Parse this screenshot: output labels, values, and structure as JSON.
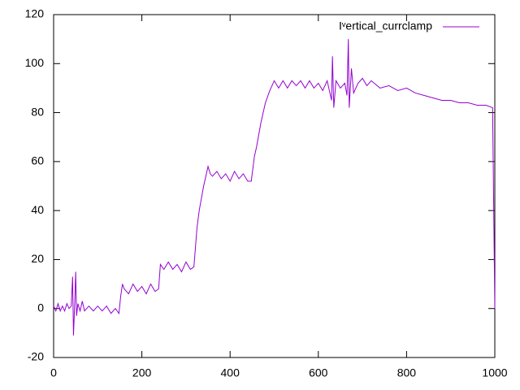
{
  "chart_data": {
    "type": "line",
    "x": [
      0,
      5,
      10,
      15,
      20,
      25,
      30,
      35,
      40,
      43,
      45,
      48,
      50,
      52,
      55,
      60,
      65,
      70,
      80,
      90,
      100,
      110,
      120,
      130,
      140,
      148,
      152,
      156,
      160,
      170,
      180,
      190,
      200,
      210,
      220,
      230,
      238,
      242,
      250,
      260,
      270,
      280,
      290,
      300,
      310,
      318,
      325,
      330,
      340,
      350,
      355,
      360,
      370,
      380,
      390,
      400,
      410,
      420,
      430,
      440,
      448,
      455,
      460,
      470,
      480,
      490,
      500,
      510,
      520,
      530,
      540,
      550,
      560,
      570,
      580,
      590,
      600,
      610,
      620,
      630,
      632,
      635,
      640,
      650,
      660,
      665,
      668,
      670,
      675,
      680,
      690,
      700,
      710,
      720,
      740,
      760,
      780,
      800,
      820,
      840,
      860,
      880,
      900,
      920,
      940,
      960,
      980,
      995,
      1000
    ],
    "series": [
      {
        "name": "Iᵛertical_currclamp",
        "color": "#9400d3",
        "values": [
          1,
          -1,
          2,
          -1,
          1,
          -1,
          2,
          0,
          1,
          13,
          -11,
          3,
          15,
          -3,
          2,
          -1,
          3,
          -1,
          1,
          -1,
          1,
          -1,
          1,
          -2,
          0,
          -2,
          5,
          10,
          8,
          6,
          10,
          7,
          9,
          6,
          10,
          7,
          8,
          18,
          16,
          19,
          16,
          18,
          15,
          19,
          16,
          17,
          33,
          40,
          50,
          58,
          55,
          54,
          56,
          53,
          55,
          52,
          56,
          53,
          55,
          52,
          52,
          62,
          66,
          76,
          84,
          89,
          93,
          90,
          93,
          90,
          93,
          91,
          93,
          90,
          93,
          90,
          92,
          89,
          93,
          85,
          103,
          82,
          93,
          90,
          92,
          87,
          110,
          82,
          98,
          88,
          92,
          94,
          91,
          93,
          90,
          91,
          89,
          90,
          88,
          87,
          86,
          85,
          85,
          84,
          84,
          83,
          83,
          82,
          0
        ]
      }
    ],
    "xlim": [
      0,
      1000
    ],
    "xticks": [
      0,
      200,
      400,
      600,
      800,
      1000
    ],
    "ylim": [
      -20,
      120
    ],
    "yticks": [
      -20,
      0,
      20,
      40,
      60,
      80,
      100,
      120
    ],
    "legend": "top-right"
  }
}
